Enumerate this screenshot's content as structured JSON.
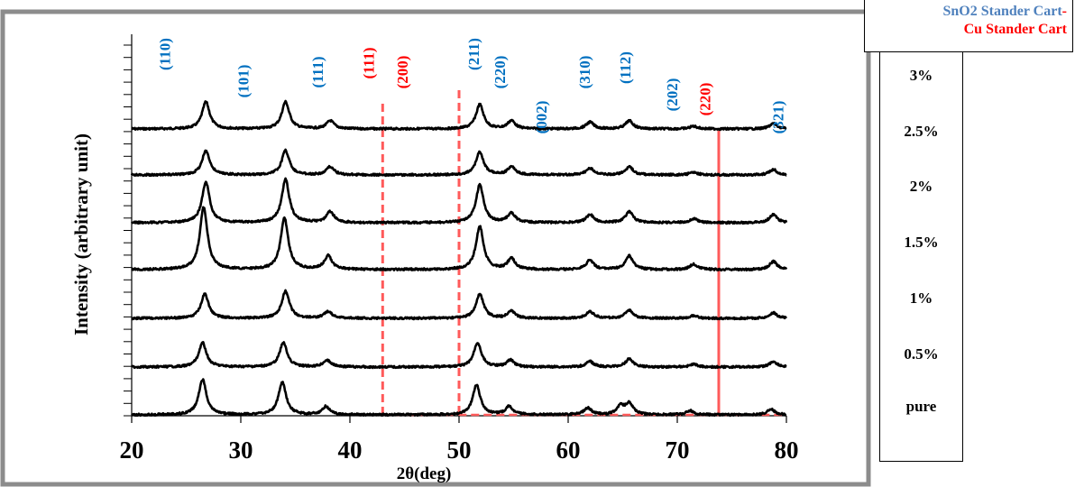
{
  "legend": {
    "line1": "SnO2 Stander Cart",
    "line1_dash": "-",
    "line2": "Cu Stander Cart",
    "colors": {
      "sno2": "#4f81bd",
      "cu": "#ff0000",
      "dash": "#ff0000"
    }
  },
  "samples": [
    "3%",
    "2.5%",
    "2%",
    "1.5%",
    "1%",
    "0.5%",
    "pure"
  ],
  "chart_data": {
    "type": "line",
    "title": "",
    "xlabel": "2θ(deg)",
    "ylabel": "Intensity (arbitrary unit)",
    "xlim": [
      20,
      80
    ],
    "x_ticks": [
      "20",
      "30",
      "40",
      "50",
      "60",
      "70",
      "80"
    ],
    "y_ticks_shown": false,
    "grid": false,
    "series": [
      {
        "name": "3%",
        "baseline": 6,
        "peaks": [
          [
            26.8,
            1.0
          ],
          [
            34.1,
            1.0
          ],
          [
            38.2,
            0.3
          ],
          [
            51.9,
            0.9
          ],
          [
            54.8,
            0.3
          ],
          [
            62.0,
            0.25
          ],
          [
            65.6,
            0.3
          ],
          [
            71.5,
            0.1
          ],
          [
            78.8,
            0.2
          ]
        ]
      },
      {
        "name": "2.5%",
        "baseline": 5,
        "peaks": [
          [
            26.8,
            0.9
          ],
          [
            34.1,
            0.9
          ],
          [
            38.2,
            0.3
          ],
          [
            51.9,
            0.85
          ],
          [
            54.8,
            0.3
          ],
          [
            62.0,
            0.25
          ],
          [
            65.6,
            0.3
          ],
          [
            71.5,
            0.1
          ],
          [
            78.8,
            0.2
          ]
        ]
      },
      {
        "name": "2%",
        "baseline": 4,
        "peaks": [
          [
            26.8,
            1.5
          ],
          [
            34.1,
            1.6
          ],
          [
            38.2,
            0.4
          ],
          [
            51.9,
            1.4
          ],
          [
            54.8,
            0.35
          ],
          [
            62.0,
            0.3
          ],
          [
            65.6,
            0.4
          ],
          [
            71.5,
            0.15
          ],
          [
            78.8,
            0.3
          ]
        ]
      },
      {
        "name": "1.5%",
        "baseline": 3,
        "peaks": [
          [
            26.6,
            2.3
          ],
          [
            34.0,
            1.9
          ],
          [
            38.0,
            0.5
          ],
          [
            51.9,
            1.6
          ],
          [
            54.8,
            0.4
          ],
          [
            62.0,
            0.35
          ],
          [
            65.6,
            0.5
          ],
          [
            71.5,
            0.2
          ],
          [
            78.8,
            0.3
          ]
        ]
      },
      {
        "name": "1%",
        "baseline": 2,
        "peaks": [
          [
            26.7,
            0.9
          ],
          [
            34.1,
            1.0
          ],
          [
            38.0,
            0.25
          ],
          [
            51.9,
            0.9
          ],
          [
            54.8,
            0.25
          ],
          [
            62.0,
            0.25
          ],
          [
            65.6,
            0.3
          ],
          [
            71.5,
            0.1
          ],
          [
            78.8,
            0.2
          ]
        ]
      },
      {
        "name": "0.5%",
        "baseline": 1,
        "peaks": [
          [
            26.5,
            0.9
          ],
          [
            33.9,
            0.9
          ],
          [
            37.9,
            0.25
          ],
          [
            51.7,
            0.9
          ],
          [
            54.7,
            0.25
          ],
          [
            62.0,
            0.2
          ],
          [
            65.6,
            0.3
          ],
          [
            71.5,
            0.1
          ],
          [
            78.8,
            0.2
          ]
        ]
      },
      {
        "name": "pure",
        "baseline": 0,
        "peaks": [
          [
            26.5,
            1.3
          ],
          [
            33.8,
            1.2
          ],
          [
            37.8,
            0.3
          ],
          [
            51.6,
            1.1
          ],
          [
            54.6,
            0.3
          ],
          [
            61.8,
            0.25
          ],
          [
            64.8,
            0.3
          ],
          [
            65.6,
            0.4
          ],
          [
            71.2,
            0.15
          ],
          [
            78.6,
            0.2
          ]
        ]
      }
    ],
    "reference_lines": [
      {
        "x": 43.0,
        "label": "Cu (111)",
        "style": "dashed"
      },
      {
        "x": 50.0,
        "label": "Cu (200)",
        "style": "dashed"
      },
      {
        "x": 73.8,
        "label": "Cu (220)",
        "style": "solid"
      }
    ],
    "annotations": [
      {
        "text": "(110)",
        "x": 23.5,
        "color": "#0070c0"
      },
      {
        "text": "(101)",
        "x": 30.7,
        "color": "#0070c0"
      },
      {
        "text": "(111)",
        "x": 37.5,
        "color": "#0070c0"
      },
      {
        "text": "(111)",
        "x": 42.2,
        "color": "#ff0000"
      },
      {
        "text": "(200)",
        "x": 45.3,
        "color": "#ff0000"
      },
      {
        "text": "(211)",
        "x": 51.8,
        "color": "#0070c0"
      },
      {
        "text": "(220)",
        "x": 54.2,
        "color": "#0070c0"
      },
      {
        "text": "(002)",
        "x": 58.0,
        "color": "#0070c0"
      },
      {
        "text": "(310)",
        "x": 62.0,
        "color": "#0070c0"
      },
      {
        "text": "(112)",
        "x": 65.7,
        "color": "#0070c0"
      },
      {
        "text": "(202)",
        "x": 70.0,
        "color": "#0070c0"
      },
      {
        "text": "(220)",
        "x": 73.0,
        "color": "#ff0000"
      },
      {
        "text": "(321)",
        "x": 79.7,
        "color": "#0070c0"
      }
    ]
  }
}
